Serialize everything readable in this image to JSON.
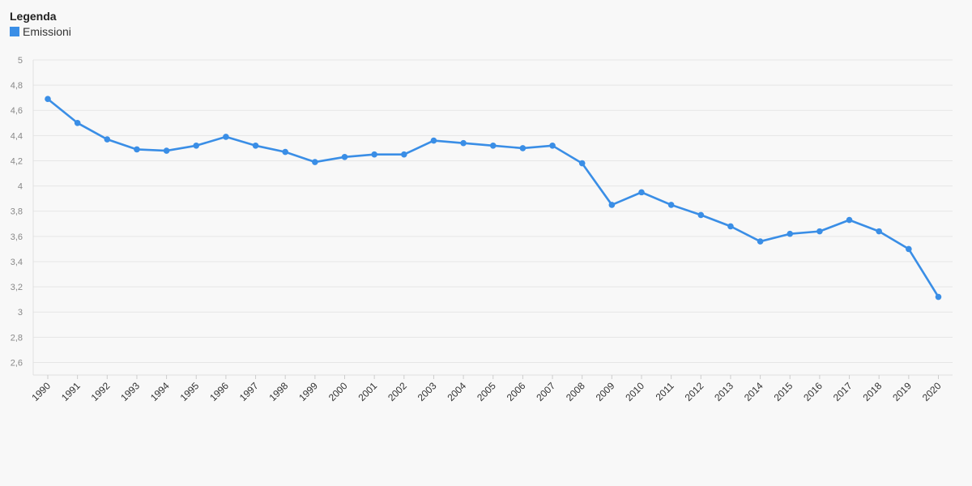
{
  "legend": {
    "title": "Legenda",
    "items": [
      {
        "label": "Emissioni",
        "color": "#3a8ee6"
      }
    ]
  },
  "chart_data": {
    "type": "line",
    "title": "",
    "xlabel": "",
    "ylabel": "",
    "ylim": [
      2.5,
      5
    ],
    "yticks": [
      "2,6",
      "2,8",
      "3",
      "3,2",
      "3,4",
      "3,6",
      "3,8",
      "4",
      "4,2",
      "4,4",
      "4,6",
      "4,8",
      "5"
    ],
    "grid": true,
    "legend_position": "top-left",
    "x": [
      "1990",
      "1991",
      "1992",
      "1993",
      "1994",
      "1995",
      "1996",
      "1997",
      "1998",
      "1999",
      "2000",
      "2001",
      "2002",
      "2003",
      "2004",
      "2005",
      "2006",
      "2007",
      "2008",
      "2009",
      "2010",
      "2011",
      "2012",
      "2013",
      "2014",
      "2015",
      "2016",
      "2017",
      "2018",
      "2019",
      "2020"
    ],
    "series": [
      {
        "name": "Emissioni",
        "color": "#3a8ee6",
        "values": [
          4.69,
          4.5,
          4.37,
          4.29,
          4.28,
          4.32,
          4.39,
          4.32,
          4.27,
          4.19,
          4.23,
          4.25,
          4.25,
          4.36,
          4.34,
          4.32,
          4.3,
          4.32,
          4.18,
          3.85,
          3.95,
          3.85,
          3.77,
          3.68,
          3.56,
          3.62,
          3.64,
          3.73,
          3.64,
          3.5,
          3.12
        ]
      }
    ]
  }
}
